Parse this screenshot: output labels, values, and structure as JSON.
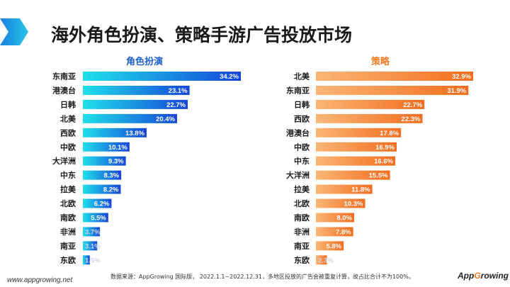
{
  "header": {
    "title": "海外角色扮演、策略手游广告投放市场"
  },
  "chart_data": [
    {
      "type": "bar",
      "orientation": "horizontal",
      "title": "角色扮演",
      "categories": [
        "东南亚",
        "港澳台",
        "日韩",
        "北美",
        "西欧",
        "中欧",
        "大洋洲",
        "中东",
        "拉美",
        "北欧",
        "南欧",
        "非洲",
        "南亚",
        "东欧"
      ],
      "values": [
        34.2,
        23.1,
        22.7,
        20.4,
        13.8,
        10.1,
        9.3,
        8.3,
        8.2,
        6.2,
        5.5,
        3.7,
        3.1,
        1.5
      ],
      "value_suffix": "%",
      "xlim": [
        0,
        34.2
      ],
      "colors": {
        "start": "#1fe0ea",
        "end": "#1546d8"
      }
    },
    {
      "type": "bar",
      "orientation": "horizontal",
      "title": "策略",
      "categories": [
        "北美",
        "东南亚",
        "日韩",
        "西欧",
        "港澳台",
        "中欧",
        "中东",
        "大洋洲",
        "拉美",
        "北欧",
        "南欧",
        "非洲",
        "南亚",
        "东欧"
      ],
      "values": [
        32.9,
        31.9,
        22.7,
        22.3,
        17.8,
        16.9,
        16.6,
        15.5,
        11.8,
        10.3,
        8.0,
        7.8,
        5.8,
        2.3
      ],
      "value_suffix": "%",
      "xlim": [
        0,
        32.9
      ],
      "colors": {
        "start": "#fbb677",
        "end": "#f26d1d"
      }
    }
  ],
  "footer": {
    "url": "www.appgrowing.net",
    "note": "数据来源：AppGrowing 国际版， 2022.1.1~2022.12.31，多地区投放的广告会被重复计算，故占比合计不为100%。",
    "logo_prefix": "App",
    "logo_g": "G",
    "logo_suffix": "rowing"
  }
}
